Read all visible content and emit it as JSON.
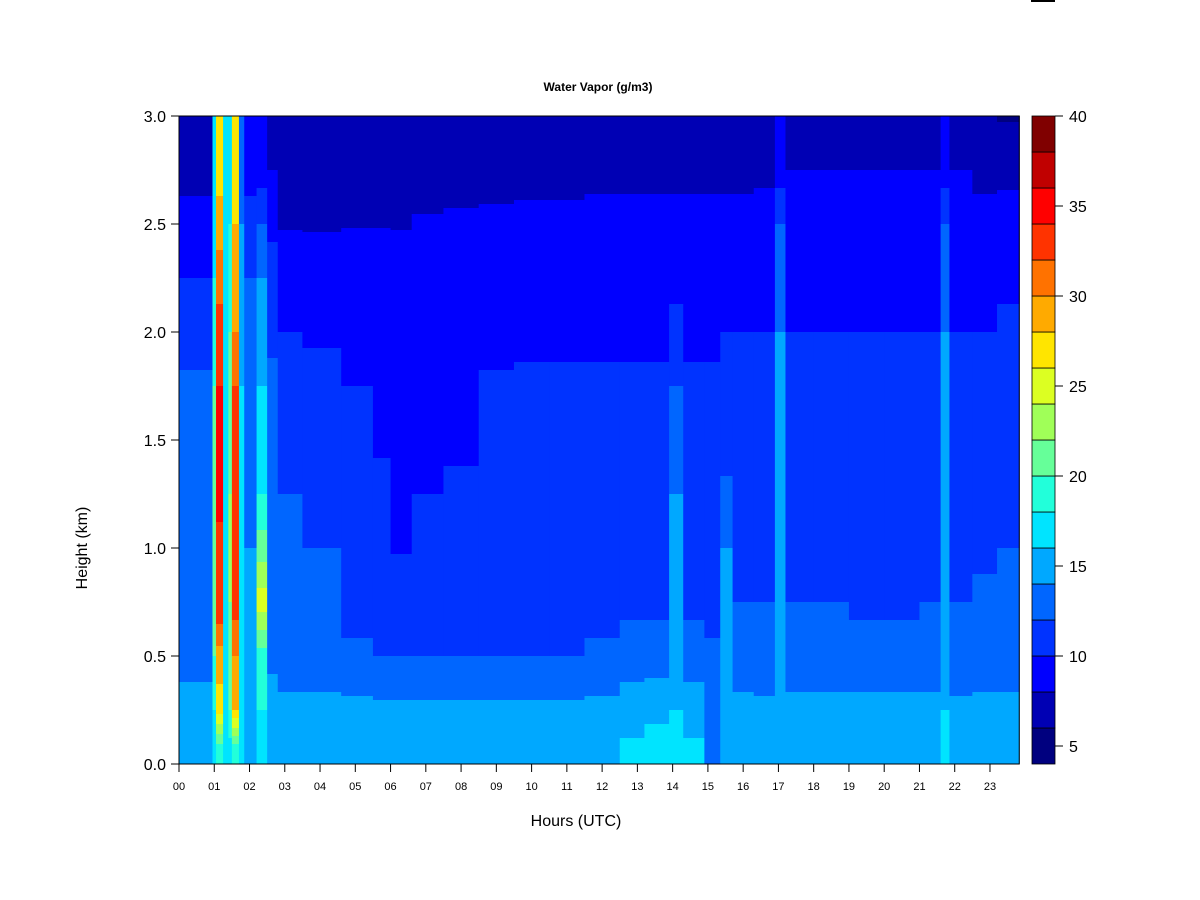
{
  "chart_data": {
    "type": "heatmap",
    "title": "Water Vapor (g/m3)",
    "xlabel": "Hours (UTC)",
    "ylabel": "Height (km)",
    "xlim": [
      0,
      23.83
    ],
    "ylim": [
      0,
      3.0
    ],
    "x_tick_values": [
      0,
      1,
      2,
      3,
      4,
      5,
      6,
      7,
      8,
      9,
      10,
      11,
      12,
      13,
      14,
      15,
      16,
      17,
      18,
      19,
      20,
      21,
      22,
      23
    ],
    "x_tick_labels": [
      "00",
      "01",
      "02",
      "03",
      "04",
      "05",
      "06",
      "07",
      "08",
      "09",
      "10",
      "11",
      "12",
      "13",
      "14",
      "15",
      "16",
      "17",
      "18",
      "19",
      "20",
      "21",
      "22",
      "23"
    ],
    "y_tick_values": [
      0,
      0.5,
      1.0,
      1.5,
      2.0,
      2.5,
      3.0
    ],
    "y_tick_labels": [
      "0.0",
      "0.5",
      "1.0",
      "1.5",
      "2.0",
      "2.5",
      "3.0"
    ],
    "grid": false,
    "colorbar": {
      "placement": "right",
      "levels": [
        4,
        6,
        8,
        10,
        12,
        14,
        16,
        18,
        20,
        22,
        24,
        26,
        28,
        30,
        32,
        34,
        36,
        38,
        40
      ],
      "colors": [
        "#00007F",
        "#0000B4",
        "#0000FF",
        "#0033FF",
        "#0066FF",
        "#00A8FF",
        "#00E4FF",
        "#22FFDA",
        "#66FF99",
        "#A0FF58",
        "#DCFF22",
        "#FFE500",
        "#FFAA00",
        "#FF7200",
        "#FF3300",
        "#FF0000",
        "#C00000",
        "#800000"
      ],
      "tick_values": [
        5,
        10,
        15,
        20,
        25,
        30,
        35,
        40
      ],
      "tick_labels": [
        "5",
        "10",
        "15",
        "20",
        "25",
        "30",
        "35",
        "40"
      ]
    },
    "heights_km": [
      0.05,
      0.25,
      0.5,
      0.75,
      1.0,
      1.25,
      1.5,
      1.75,
      2.0,
      2.25,
      2.5,
      2.75,
      3.0
    ],
    "time_end": 23.83,
    "columns": [
      {
        "start": 0.0,
        "values": [
          15,
          14.5,
          13.5,
          13,
          12.8,
          12.5,
          12.3,
          12.2,
          11.5,
          10,
          8.5,
          7.5,
          7
        ]
      },
      {
        "start": 0.95,
        "values": [
          16,
          18,
          20,
          21,
          21,
          20,
          20,
          20,
          19,
          18,
          17,
          16,
          16
        ]
      },
      {
        "start": 1.05,
        "values": [
          18,
          27,
          29,
          34,
          33,
          35,
          35,
          34,
          33,
          31,
          29,
          27,
          26
        ]
      },
      {
        "start": 1.25,
        "values": [
          17,
          18,
          17,
          18,
          17,
          17,
          17,
          17,
          17,
          16.5,
          16.5,
          16.5,
          16
        ]
      },
      {
        "start": 1.4,
        "values": [
          17,
          20,
          21,
          22,
          22,
          22,
          21,
          21,
          20,
          19,
          18,
          17,
          17
        ]
      },
      {
        "start": 1.5,
        "values": [
          18,
          28,
          30,
          33,
          33,
          34,
          33,
          32,
          30,
          29,
          28,
          27,
          26
        ]
      },
      {
        "start": 1.7,
        "values": [
          16,
          17,
          16.5,
          16,
          16,
          16,
          16,
          16,
          15,
          15,
          14,
          13,
          13
        ]
      },
      {
        "start": 1.85,
        "values": [
          15,
          15,
          14.5,
          14,
          14,
          13.5,
          13.5,
          13,
          12.5,
          12,
          11,
          9,
          8
        ]
      },
      {
        "start": 2.2,
        "values": [
          17,
          18,
          19,
          25,
          21,
          18,
          17,
          16,
          15,
          14,
          12,
          9,
          8
        ]
      },
      {
        "start": 2.5,
        "values": [
          15,
          15,
          13.5,
          13,
          13,
          13,
          12.8,
          12.5,
          11.5,
          11,
          9.5,
          8,
          7
        ]
      },
      {
        "start": 2.8,
        "values": [
          15,
          14.5,
          13,
          12.5,
          12.5,
          12,
          11.5,
          11,
          10,
          9.5,
          7.8,
          7.5,
          7
        ]
      },
      {
        "start": 3.5,
        "values": [
          15,
          14.5,
          13,
          12.5,
          12,
          11.5,
          11,
          10.5,
          9.8,
          9.2,
          7.8,
          7.5,
          7
        ]
      },
      {
        "start": 4.6,
        "values": [
          15.5,
          14.5,
          12.5,
          11,
          11,
          10.8,
          10.5,
          10,
          9.5,
          9,
          7.9,
          7.5,
          7
        ]
      },
      {
        "start": 5.5,
        "values": [
          15,
          14.5,
          12,
          11,
          10.6,
          10.2,
          9.9,
          9.6,
          9.3,
          9,
          7.9,
          7.5,
          7
        ]
      },
      {
        "start": 6.0,
        "values": [
          15,
          14.5,
          12,
          10.8,
          9.9,
          9.7,
          9.5,
          9.3,
          9,
          8.8,
          7.9,
          7.5,
          7
        ]
      },
      {
        "start": 6.6,
        "values": [
          15,
          14.5,
          12,
          11,
          10.4,
          10,
          9.8,
          9.5,
          9.2,
          9,
          8.1,
          7.5,
          7
        ]
      },
      {
        "start": 7.5,
        "values": [
          15,
          14.5,
          12,
          11,
          10.8,
          10.2,
          9.8,
          9.5,
          9.2,
          9,
          8.2,
          7.5,
          7
        ]
      },
      {
        "start": 8.5,
        "values": [
          15,
          14.5,
          12,
          11,
          11,
          11,
          10.6,
          10.2,
          9.5,
          9,
          8.3,
          7.5,
          7
        ]
      },
      {
        "start": 9.5,
        "values": [
          15,
          14.5,
          12,
          11,
          11,
          11,
          11,
          10.4,
          9.5,
          9,
          8.4,
          7.5,
          7
        ]
      },
      {
        "start": 10.5,
        "values": [
          15,
          14.5,
          12,
          11,
          11,
          11,
          11,
          10.4,
          9.5,
          9,
          8.4,
          7.5,
          7
        ]
      },
      {
        "start": 11.5,
        "values": [
          15.5,
          14.5,
          12.5,
          11,
          11,
          11,
          11,
          10.4,
          9.5,
          9,
          8.5,
          7.6,
          7
        ]
      },
      {
        "start": 12.5,
        "values": [
          16.5,
          15,
          13,
          11.5,
          11,
          11,
          11,
          10.4,
          9.5,
          9,
          8.5,
          7.6,
          7
        ]
      },
      {
        "start": 13.2,
        "values": [
          17,
          15.5,
          13,
          11.5,
          11,
          11,
          11,
          10.4,
          9.5,
          9,
          8.5,
          7.6,
          7
        ]
      },
      {
        "start": 13.9,
        "values": [
          17,
          16,
          15,
          14.5,
          14,
          14,
          13.5,
          12,
          10.5,
          9.5,
          8.5,
          7.6,
          7
        ]
      },
      {
        "start": 14.3,
        "values": [
          16.5,
          15,
          13,
          11.5,
          11,
          11,
          11,
          10.4,
          9.5,
          9,
          8.5,
          7.6,
          7
        ]
      },
      {
        "start": 14.9,
        "values": [
          13.5,
          13,
          12.5,
          11,
          11,
          11,
          11,
          10.4,
          9.5,
          9,
          8.5,
          7.6,
          7
        ]
      },
      {
        "start": 15.35,
        "values": [
          15,
          14.5,
          14,
          14,
          14,
          12.5,
          11,
          10.5,
          10,
          9.5,
          8.5,
          7.6,
          7
        ]
      },
      {
        "start": 15.7,
        "values": [
          15,
          14.5,
          13,
          12,
          11,
          11,
          11,
          10.5,
          10,
          9.5,
          8.5,
          7.6,
          7
        ]
      },
      {
        "start": 16.3,
        "values": [
          15,
          14.5,
          12.5,
          12,
          11.5,
          11,
          11,
          10.5,
          10,
          9.5,
          8.6,
          7.7,
          7
        ]
      },
      {
        "start": 16.9,
        "values": [
          15,
          15,
          14.5,
          14,
          14,
          14,
          14,
          14,
          14,
          13,
          12,
          9,
          8
        ]
      },
      {
        "start": 17.2,
        "values": [
          14.5,
          14.5,
          13,
          12,
          11,
          11,
          11,
          10.5,
          10,
          9.5,
          8.8,
          8,
          7.5
        ]
      },
      {
        "start": 18.0,
        "values": [
          15,
          14.5,
          13,
          12,
          11,
          11,
          11,
          10.5,
          10,
          9.5,
          8.8,
          8,
          7.5
        ]
      },
      {
        "start": 19.0,
        "values": [
          15,
          14.5,
          13,
          11.5,
          11,
          11,
          11,
          10.5,
          10,
          9.5,
          8.8,
          8,
          7.5
        ]
      },
      {
        "start": 20.0,
        "values": [
          15,
          14.5,
          13,
          11.5,
          11,
          11,
          11,
          10.5,
          10,
          9.5,
          8.8,
          8,
          7.5
        ]
      },
      {
        "start": 21.0,
        "values": [
          15,
          14.5,
          13,
          12,
          11,
          11,
          11,
          10.5,
          10,
          9.5,
          8.8,
          8,
          7.5
        ]
      },
      {
        "start": 21.6,
        "values": [
          17,
          16,
          15,
          14.5,
          14,
          14,
          14,
          14,
          14,
          13,
          12,
          9,
          8
        ]
      },
      {
        "start": 21.85,
        "values": [
          15,
          14.5,
          12.5,
          12,
          11,
          11,
          11,
          10.5,
          10,
          9.5,
          8.8,
          8,
          7.5
        ]
      },
      {
        "start": 22.5,
        "values": [
          14.5,
          14.5,
          13,
          12.5,
          11.5,
          11,
          11,
          10.5,
          10,
          9.5,
          8.6,
          7.5,
          6.5
        ]
      },
      {
        "start": 23.2,
        "values": [
          15.5,
          14.5,
          13,
          12.5,
          12,
          11.5,
          11,
          10.5,
          10.2,
          9.8,
          8.8,
          7.5,
          5.8
        ]
      }
    ]
  }
}
